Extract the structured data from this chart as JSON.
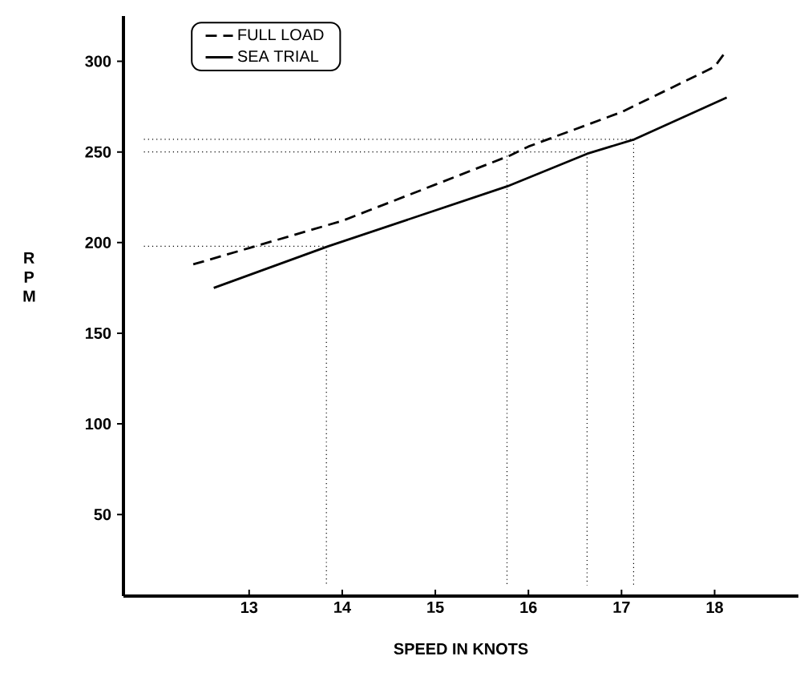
{
  "chart_data": {
    "type": "line",
    "xlabel": "SPEED IN KNOTS",
    "ylabel": "R P M",
    "xlim": [
      11.65,
      18.9
    ],
    "ylim": [
      5,
      325
    ],
    "xticks": [
      13,
      14,
      15,
      16,
      17,
      18
    ],
    "yticks": [
      50,
      100,
      150,
      200,
      250,
      300
    ],
    "legend": "top left",
    "series": [
      {
        "name": "FULL LOAD",
        "color": "#000000",
        "line_style": "dashed",
        "x": [
          12.4,
          13,
          14,
          15,
          15.8,
          16,
          17,
          18,
          18.1
        ],
        "values": [
          188,
          197,
          212,
          232,
          248,
          253,
          272,
          297,
          304
        ]
      },
      {
        "name": "SEA TRIAL",
        "color": "#000000",
        "line_style": "solid",
        "x": [
          12.62,
          13.85,
          15.77,
          16.63,
          17.14,
          18.13
        ],
        "values": [
          175,
          198,
          231,
          249,
          257,
          280
        ]
      },
      {
        "color": "#000000",
        "line_style": "dotted",
        "x": [
          11.87,
          13.83,
          13.83
        ],
        "values": [
          198,
          198,
          11
        ]
      },
      {
        "color": "#000000",
        "line_style": "dotted",
        "x": [
          15.77,
          15.77
        ],
        "values": [
          248,
          11
        ]
      },
      {
        "color": "#000000",
        "line_style": "dotted",
        "x": [
          11.87,
          16.63,
          16.63
        ],
        "values": [
          250,
          250,
          11
        ]
      },
      {
        "color": "#000000",
        "line_style": "dotted",
        "x": [
          11.87,
          17.13,
          17.13
        ],
        "values": [
          257,
          257,
          11
        ]
      }
    ]
  }
}
